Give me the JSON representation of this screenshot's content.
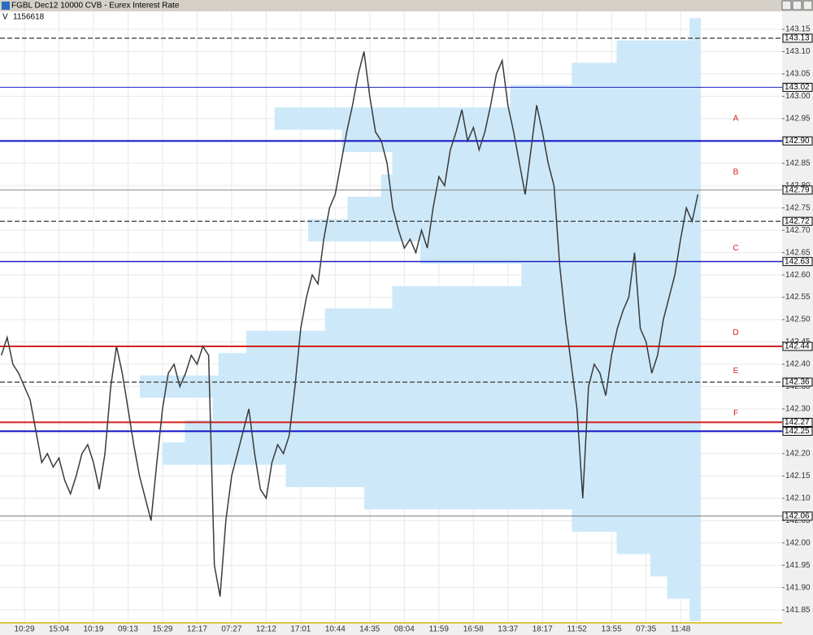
{
  "window_title": "FGBL Dec12 10000 CVB - Eurex Interest Rate",
  "chart_data": {
    "type": "line",
    "volume_label": "V",
    "volume": "1156618",
    "categories": [
      null,
      null,
      null,
      null,
      "10:29",
      null,
      null,
      null,
      null,
      null,
      "15:04",
      null,
      null,
      null,
      null,
      null,
      "10:19",
      null,
      null,
      null,
      null,
      null,
      "09:13",
      null,
      null,
      null,
      null,
      null,
      "15:29",
      null,
      null,
      null,
      null,
      null,
      "12:17",
      null,
      null,
      null,
      null,
      null,
      "07:27",
      null,
      null,
      null,
      null,
      null,
      "12:12",
      null,
      null,
      null,
      null,
      null,
      "17:01",
      null,
      null,
      null,
      null,
      null,
      "10:44",
      null,
      null,
      null,
      null,
      null,
      "14:35",
      null,
      null,
      null,
      null,
      null,
      "08:04",
      null,
      null,
      null,
      null,
      null,
      "11:59",
      null,
      null,
      null,
      null,
      null,
      "16:58",
      null,
      null,
      null,
      null,
      null,
      "13:37",
      null,
      null,
      null,
      null,
      null,
      "18:17",
      null,
      null,
      null,
      null,
      null,
      "11:52",
      null,
      null,
      null,
      null,
      null,
      "13:55",
      null,
      null,
      null,
      null,
      null,
      "07:35",
      null,
      null,
      null,
      null,
      null,
      "11:48",
      null,
      null,
      null
    ],
    "values": [
      142.42,
      142.46,
      142.4,
      142.38,
      142.35,
      142.32,
      142.25,
      142.18,
      142.2,
      142.17,
      142.19,
      142.14,
      142.11,
      142.15,
      142.2,
      142.22,
      142.18,
      142.12,
      142.2,
      142.35,
      142.44,
      142.38,
      142.3,
      142.22,
      142.15,
      142.1,
      142.05,
      142.18,
      142.3,
      142.38,
      142.4,
      142.35,
      142.38,
      142.42,
      142.4,
      142.44,
      142.42,
      141.95,
      141.88,
      142.05,
      142.15,
      142.2,
      142.25,
      142.3,
      142.2,
      142.12,
      142.1,
      142.18,
      142.22,
      142.2,
      142.24,
      142.35,
      142.48,
      142.55,
      142.6,
      142.58,
      142.68,
      142.75,
      142.78,
      142.85,
      142.92,
      142.98,
      143.05,
      143.1,
      143.0,
      142.92,
      142.9,
      142.85,
      142.75,
      142.7,
      142.66,
      142.68,
      142.65,
      142.7,
      142.66,
      142.75,
      142.82,
      142.8,
      142.88,
      142.92,
      142.97,
      142.9,
      142.93,
      142.88,
      142.92,
      142.98,
      143.05,
      143.08,
      142.98,
      142.92,
      142.85,
      142.78,
      142.88,
      142.98,
      142.92,
      142.85,
      142.8,
      142.62,
      142.5,
      142.4,
      142.3,
      142.1,
      142.35,
      142.4,
      142.38,
      142.33,
      142.42,
      142.48,
      142.52,
      142.55,
      142.65,
      142.48,
      142.45,
      142.38,
      142.42,
      142.5,
      142.55,
      142.6,
      142.68,
      142.75,
      142.72,
      142.78
    ],
    "color": "#3a3a3a",
    "ylim": [
      141.823,
      143.19
    ],
    "yticks": [
      141.85,
      {
        "value": 141.9,
        "label": "141.90"
      },
      141.95,
      {
        "value": 142.0,
        "label": "142.00"
      },
      142.05,
      {
        "value": 142.1,
        "label": "142.10"
      },
      142.15,
      {
        "value": 142.2,
        "label": "142.20"
      },
      142.25,
      {
        "value": 142.3,
        "label": "142.30"
      },
      142.35,
      {
        "value": 142.4,
        "label": "142.40"
      },
      142.45,
      {
        "value": 142.5,
        "label": "142.50"
      },
      142.55,
      {
        "value": 142.6,
        "label": "142.60"
      },
      142.65,
      {
        "value": 142.7,
        "label": "142.70"
      },
      142.75,
      {
        "value": 142.8,
        "label": "142.80"
      },
      142.85,
      {
        "value": 142.9,
        "label": "142.90"
      },
      142.95,
      {
        "value": 143.0,
        "label": "143.00"
      },
      143.05,
      {
        "value": 143.1,
        "label": "143.10"
      },
      143.15
    ],
    "grid": true,
    "profile": {
      "color": "#cde9f9",
      "prices": [
        143.15,
        143.1,
        143.05,
        143.0,
        142.95,
        142.9,
        142.85,
        142.8,
        142.75,
        142.7,
        142.65,
        142.6,
        142.55,
        142.5,
        142.45,
        142.4,
        142.35,
        142.3,
        142.25,
        142.2,
        142.15,
        142.1,
        142.05,
        142.0,
        141.95,
        141.9,
        141.85
      ],
      "values": [
        2,
        15,
        23,
        34,
        76,
        64,
        55,
        57,
        63,
        70,
        50,
        32,
        55,
        67,
        81,
        86,
        100,
        87,
        92,
        96,
        74,
        60,
        23,
        15,
        9,
        6,
        2
      ]
    },
    "levels": {
      "values": [
        143.13,
        143.02,
        142.9,
        142.79,
        142.72,
        142.63,
        142.44,
        142.36,
        142.27,
        142.25,
        142.06
      ],
      "value_labels": [
        "143.13",
        "143.02",
        "142.90",
        "142.79",
        "142.72",
        "142.63",
        "142.44",
        "142.36",
        "142.27",
        "142.25",
        "142.06"
      ],
      "colors": [
        "#555555",
        "#2020c0",
        "#1010c8",
        "#888888",
        "#555555",
        "#2020c0",
        "#d42020",
        "#555555",
        "#d42020",
        "#1010c8",
        "#777777"
      ],
      "widths": [
        1.5,
        1,
        2,
        1,
        1.5,
        1.5,
        2,
        1.5,
        2,
        2,
        1
      ],
      "dashed": [
        true,
        false,
        false,
        false,
        true,
        false,
        false,
        true,
        false,
        false,
        false
      ]
    },
    "annotations": {
      "texts": [
        "A",
        "B",
        "C",
        "D",
        "E",
        "F"
      ],
      "y": [
        142.95,
        142.83,
        142.66,
        142.47,
        142.385,
        142.29
      ],
      "color": "#d42020"
    }
  }
}
